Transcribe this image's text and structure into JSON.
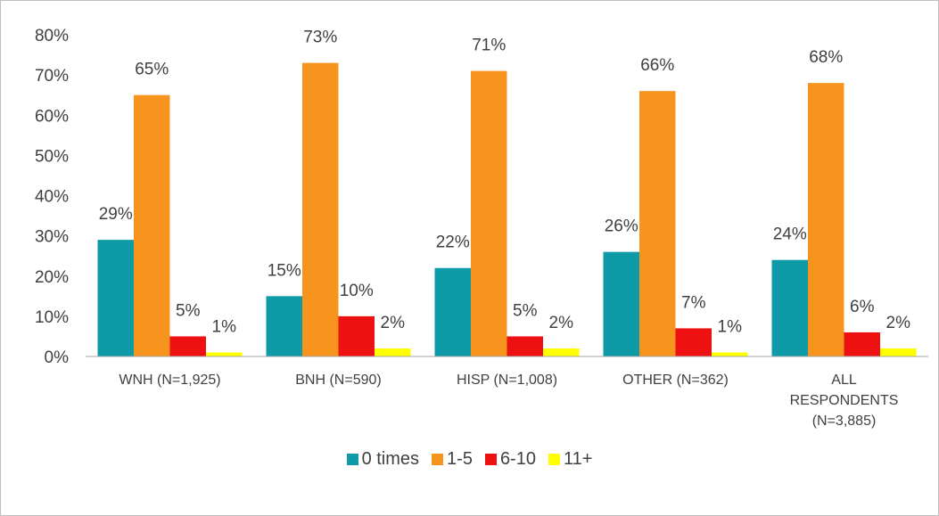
{
  "chart_data": {
    "type": "bar",
    "categories": [
      "WNH (N=1,925)",
      "BNH (N=590)",
      "HISP (N=1,008)",
      "OTHER (N=362)",
      "ALL RESPONDENTS (N=3,885)"
    ],
    "series": [
      {
        "name": "0 times",
        "color": "#0e9aa7",
        "values": [
          29,
          15,
          22,
          26,
          24
        ],
        "value_labels": [
          "29%",
          "15%",
          "22%",
          "26%",
          "24%"
        ]
      },
      {
        "name": "1-5",
        "color": "#f7941d",
        "values": [
          65,
          73,
          71,
          66,
          68
        ],
        "value_labels": [
          "65%",
          "73%",
          "71%",
          "66%",
          "68%"
        ]
      },
      {
        "name": "6-10",
        "color": "#ee1111",
        "values": [
          5,
          10,
          5,
          7,
          6
        ],
        "value_labels": [
          "5%",
          "10%",
          "5%",
          "7%",
          "6%"
        ]
      },
      {
        "name": "11+",
        "color": "#ffff00",
        "values": [
          1,
          2,
          2,
          1,
          2
        ],
        "value_labels": [
          "1%",
          "2%",
          "2%",
          "1%",
          "2%"
        ]
      }
    ],
    "ylim": [
      0,
      80
    ],
    "yticks": [
      {
        "value": 0,
        "label": "0%"
      },
      {
        "value": 10,
        "label": "10%"
      },
      {
        "value": 20,
        "label": "20%"
      },
      {
        "value": 30,
        "label": "30%"
      },
      {
        "value": 40,
        "label": "40%"
      },
      {
        "value": 50,
        "label": "50%"
      },
      {
        "value": 60,
        "label": "60%"
      },
      {
        "value": 70,
        "label": "70%"
      },
      {
        "value": 80,
        "label": "80%"
      }
    ],
    "grid": false,
    "legend": "bottom"
  }
}
